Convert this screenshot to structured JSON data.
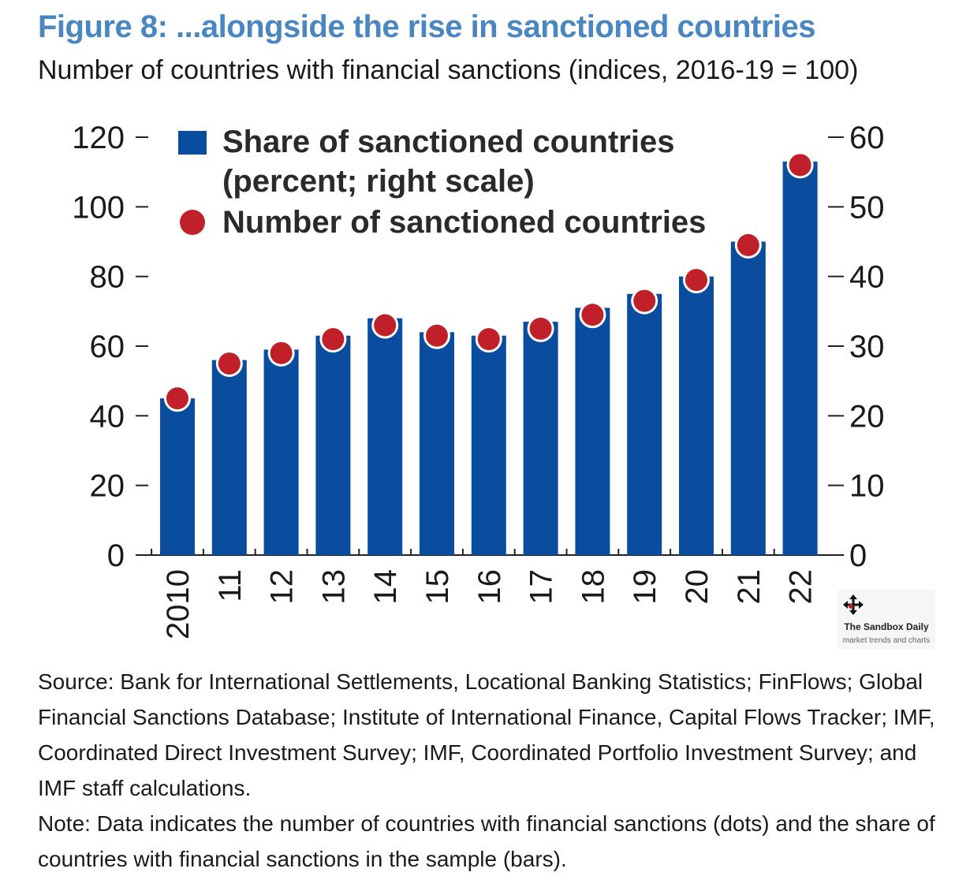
{
  "header": {
    "title": "Figure 8: ...alongside the rise in sanctioned countries",
    "subtitle": "Number of countries with financial sanctions (indices, 2016-19 = 100)"
  },
  "chart_data": {
    "type": "bar",
    "categories": [
      "2010",
      "11",
      "12",
      "13",
      "14",
      "15",
      "16",
      "17",
      "18",
      "19",
      "20",
      "21",
      "22"
    ],
    "series": [
      {
        "name": "Share of sanctioned countries (percent; right scale)",
        "kind": "bar",
        "axis": "right",
        "color": "#0a4c9e",
        "values": [
          22.5,
          28,
          29.5,
          31.5,
          34,
          32,
          31.5,
          33.5,
          35.5,
          37.5,
          40,
          45,
          56.5
        ]
      },
      {
        "name": "Number of sanctioned countries",
        "kind": "dot",
        "axis": "left",
        "color": "#c0202a",
        "values": [
          45,
          55,
          58,
          62,
          66,
          63,
          62,
          65,
          69,
          73,
          79,
          89,
          112
        ]
      }
    ],
    "legend": {
      "bar_line1": "Share of sanctioned countries",
      "bar_line2": "(percent; right scale)",
      "dot_label": "Number of sanctioned countries",
      "placement": "top-left"
    },
    "left_axis": {
      "ticks": [
        "0",
        "20",
        "40",
        "60",
        "80",
        "100",
        "120"
      ],
      "ylim": [
        0,
        120
      ]
    },
    "right_axis": {
      "ticks": [
        "0",
        "10",
        "20",
        "30",
        "40",
        "50",
        "60"
      ],
      "ylim": [
        0,
        60
      ]
    },
    "grid": false
  },
  "footer": {
    "source": "Source: Bank for International Settlements, Locational Banking Statistics; FinFlows; Global Financial Sanctions Database; Institute of International Finance, Capital Flows Tracker; IMF, Coordinated Direct Investment Survey; IMF, Coordinated Portfolio Investment Survey; and IMF staff calculations.",
    "note": "Note: Data indicates the number of countries with financial sanctions (dots) and the share of countries with financial sanctions in the sample (bars)."
  },
  "watermark": {
    "icon": "move-arrows-icon",
    "name": "The Sandbox Daily",
    "tagline": "market trends and charts"
  }
}
